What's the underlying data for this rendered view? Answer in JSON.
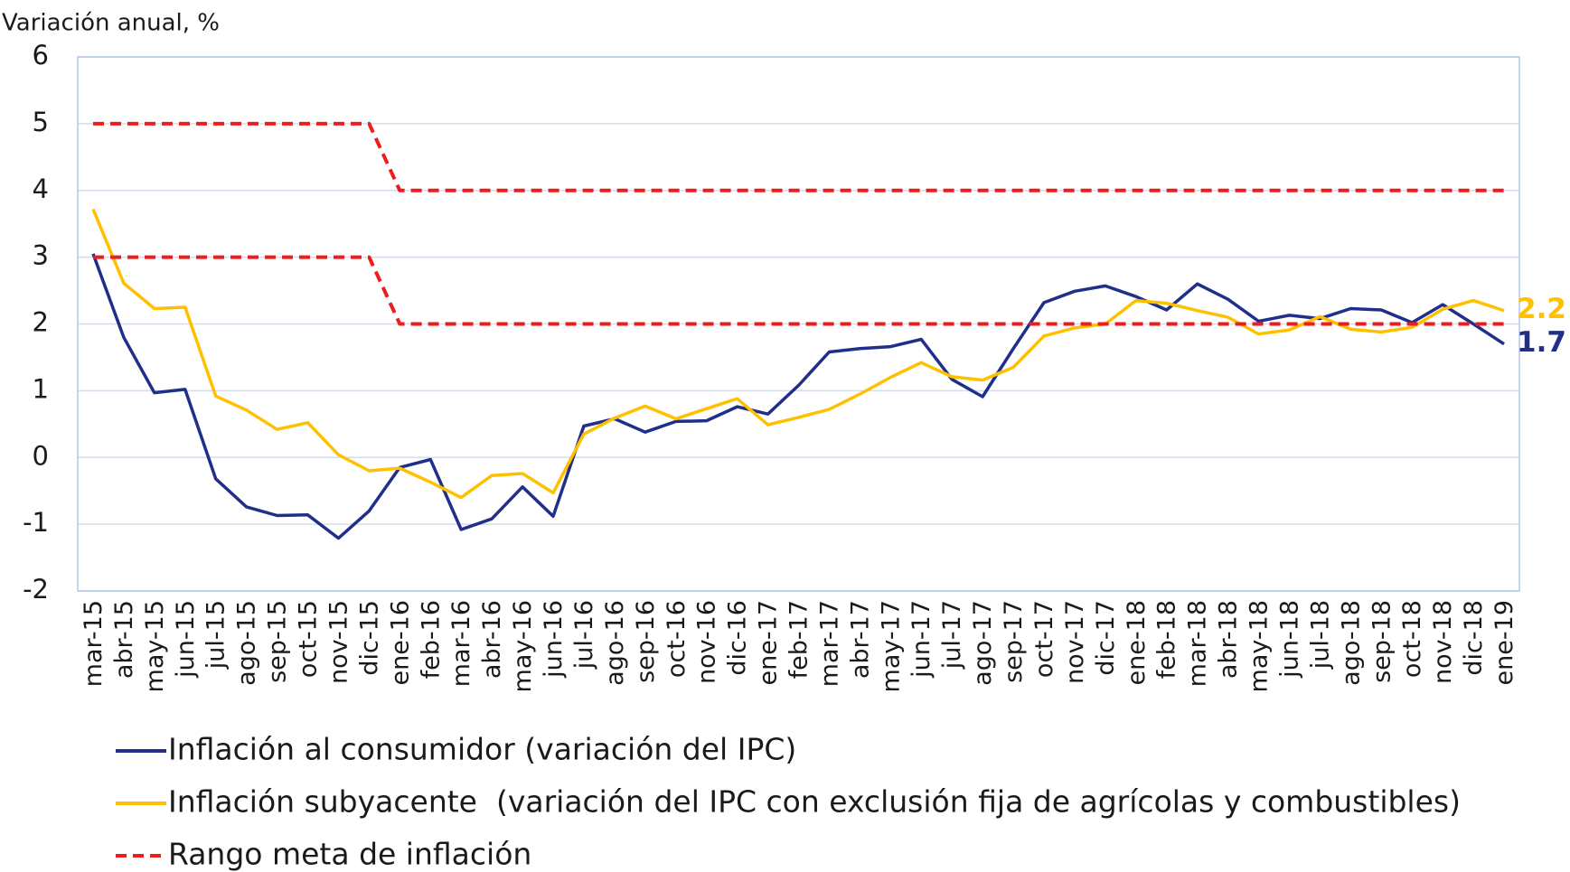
{
  "chart_data": {
    "type": "line",
    "y_axis_label": "Variación anual, %",
    "categories": [
      "mar-15",
      "abr-15",
      "may-15",
      "jun-15",
      "jul-15",
      "ago-15",
      "sep-15",
      "oct-15",
      "nov-15",
      "dic-15",
      "ene-16",
      "feb-16",
      "mar-16",
      "abr-16",
      "may-16",
      "jun-16",
      "jul-16",
      "ago-16",
      "sep-16",
      "oct-16",
      "nov-16",
      "dic-16",
      "ene-17",
      "feb-17",
      "mar-17",
      "abr-17",
      "may-17",
      "jun-17",
      "jul-17",
      "ago-17",
      "sep-17",
      "oct-17",
      "nov-17",
      "dic-17",
      "ene-18",
      "feb-18",
      "mar-18",
      "abr-18",
      "may-18",
      "jun-18",
      "jul-18",
      "ago-18",
      "sep-18",
      "oct-18",
      "nov-18",
      "dic-18",
      "ene-19"
    ],
    "series": [
      {
        "name": "Inflación al consumidor (variación del IPC)",
        "color": "#1f2f8a",
        "label_last": true,
        "values": [
          3.05,
          1.8,
          0.97,
          1.02,
          -0.32,
          -0.74,
          -0.87,
          -0.86,
          -1.21,
          -0.8,
          -0.15,
          -0.03,
          -1.08,
          -0.92,
          -0.44,
          -0.88,
          0.47,
          0.58,
          0.38,
          0.54,
          0.55,
          0.76,
          0.65,
          1.08,
          1.58,
          1.63,
          1.66,
          1.77,
          1.17,
          0.91,
          1.63,
          2.32,
          2.49,
          2.57,
          2.41,
          2.21,
          2.6,
          2.37,
          2.04,
          2.13,
          2.08,
          2.23,
          2.21,
          2.02,
          2.29,
          2.0,
          1.7
        ]
      },
      {
        "name": "Inflación subyacente  (variación del IPC con exclusión fija de agrícolas y combustibles)",
        "color": "#ffc000",
        "label_last": true,
        "values": [
          3.72,
          2.61,
          2.23,
          2.25,
          0.92,
          0.71,
          0.42,
          0.52,
          0.04,
          -0.2,
          -0.16,
          -0.37,
          -0.6,
          -0.27,
          -0.24,
          -0.53,
          0.35,
          0.59,
          0.77,
          0.58,
          0.73,
          0.88,
          0.49,
          0.6,
          0.72,
          0.95,
          1.2,
          1.42,
          1.21,
          1.16,
          1.35,
          1.82,
          1.94,
          2.0,
          2.35,
          2.31,
          2.2,
          2.1,
          1.85,
          1.91,
          2.11,
          1.92,
          1.88,
          1.95,
          2.22,
          2.35,
          2.2
        ]
      },
      {
        "name": "Rango meta de inflación",
        "color": "#ee1c1c",
        "dashed": true,
        "values": [
          5,
          5,
          5,
          5,
          5,
          5,
          5,
          5,
          5,
          5,
          4,
          4,
          4,
          4,
          4,
          4,
          4,
          4,
          4,
          4,
          4,
          4,
          4,
          4,
          4,
          4,
          4,
          4,
          4,
          4,
          4,
          4,
          4,
          4,
          4,
          4,
          4,
          4,
          4,
          4,
          4,
          4,
          4,
          4,
          4,
          4,
          4
        ]
      },
      {
        "color": "#ee1c1c",
        "dashed": true,
        "values": [
          3,
          3,
          3,
          3,
          3,
          3,
          3,
          3,
          3,
          3,
          2,
          2,
          2,
          2,
          2,
          2,
          2,
          2,
          2,
          2,
          2,
          2,
          2,
          2,
          2,
          2,
          2,
          2,
          2,
          2,
          2,
          2,
          2,
          2,
          2,
          2,
          2,
          2,
          2,
          2,
          2,
          2,
          2,
          2,
          2,
          2,
          2
        ]
      }
    ],
    "ylim": [
      -2,
      6
    ],
    "yticks": [
      -2,
      -1,
      0,
      1,
      2,
      3,
      4,
      5,
      6
    ],
    "grid": true,
    "legend": "bottom"
  }
}
